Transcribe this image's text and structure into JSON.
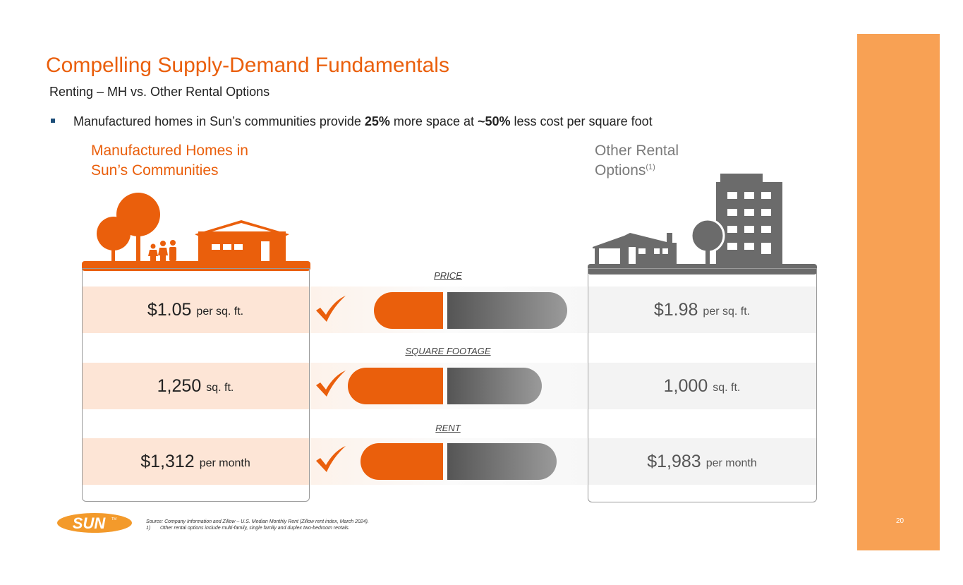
{
  "title": "Compelling Supply-Demand Fundamentals",
  "subtitle": "Renting – MH vs. Other Rental Options",
  "bullet": {
    "pre": "Manufactured homes in Sun’s communities provide ",
    "bold1": "25%",
    "mid": " more space at ",
    "bold2": "~50%",
    "post": " less cost per square foot"
  },
  "left_column": {
    "heading_line1": "Manufactured Homes in",
    "heading_line2": "Sun’s Communities"
  },
  "right_column": {
    "heading_line1": "Other Rental",
    "heading_line2": "Options",
    "footnote_ref": "(1)"
  },
  "metrics": [
    {
      "label": "PRICE",
      "left_value": "$1.05",
      "left_unit": "per sq. ft.",
      "right_value": "$1.98",
      "right_unit": "per sq. ft."
    },
    {
      "label": "SQUARE FOOTAGE",
      "left_value": "1,250",
      "left_unit": "sq. ft.",
      "right_value": "1,000",
      "right_unit": "sq. ft."
    },
    {
      "label": "RENT",
      "left_value": "$1,312",
      "left_unit": "per month",
      "right_value": "$1,983",
      "right_unit": "per month"
    }
  ],
  "source": {
    "line1": "Source: Company Information and Zillow – U.S. Median Monthly Rent (Zillow rent index, March 2024).",
    "note_num": "1)",
    "note_text": "Other rental options include multi-family, single family and duplex two-bedroom rentals."
  },
  "logo": {
    "text": "SUN",
    "tm": "TM"
  },
  "page_number": "20",
  "colors": {
    "accent": "#ea5f0c",
    "gray": "#6b6b6b",
    "sidebar": "#f8a154",
    "bullet": "#1d4e79"
  },
  "icons": [
    "trees-icon",
    "family-icon",
    "manufactured-home-icon",
    "single-family-house-icon",
    "tree-icon",
    "apartment-building-icon",
    "checkmark-icon"
  ]
}
